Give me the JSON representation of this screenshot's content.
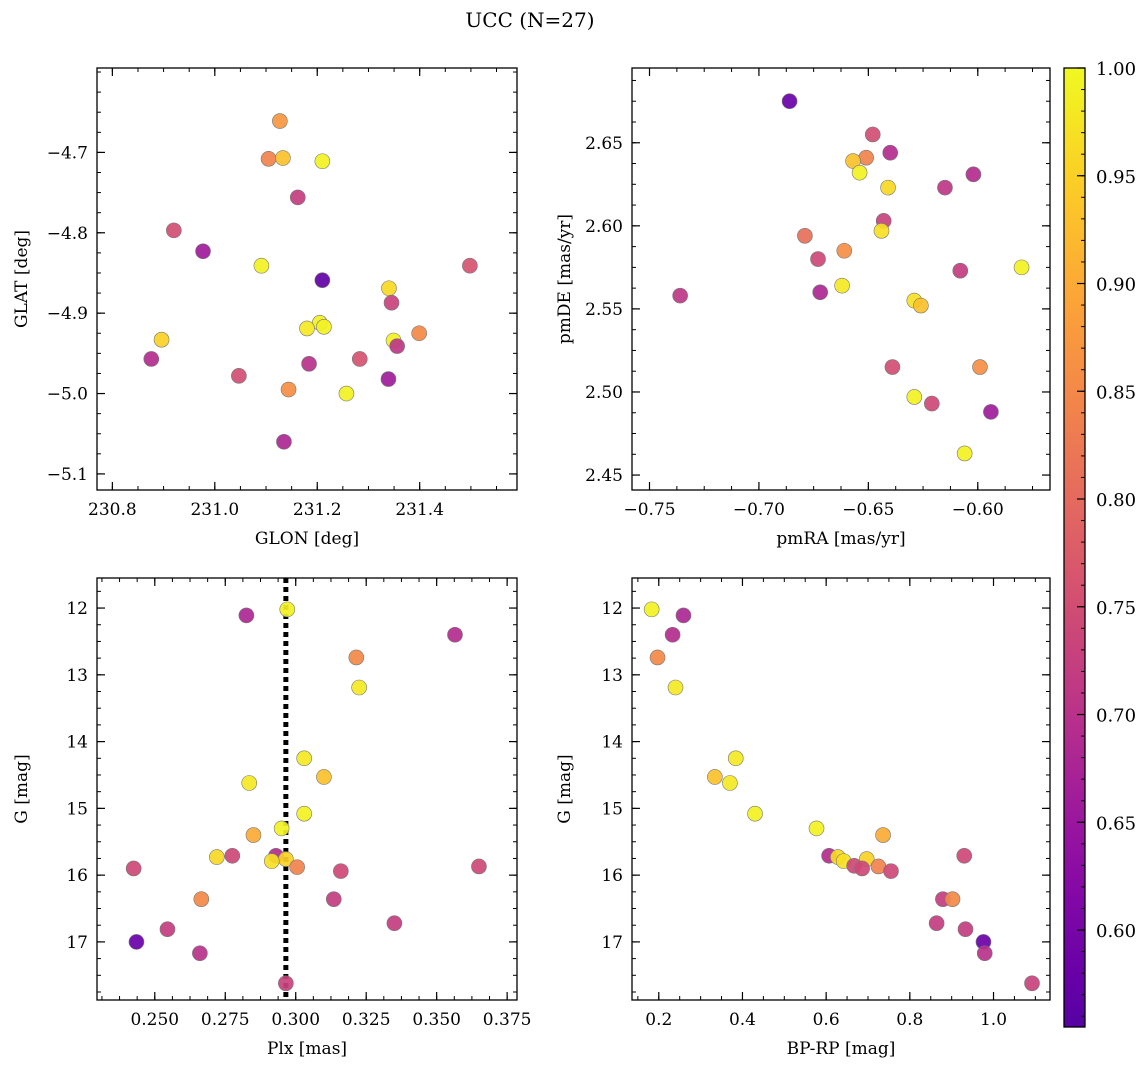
{
  "figure": {
    "title": "UCC (N=27)"
  },
  "colorbar": {
    "range": [
      0.555,
      1.0
    ],
    "ticks": [
      0.6,
      0.65,
      0.7,
      0.75,
      0.8,
      0.85,
      0.9,
      0.95,
      1.0
    ],
    "tick_labels": [
      "0.60",
      "0.65",
      "0.70",
      "0.75",
      "0.80",
      "0.85",
      "0.90",
      "0.95",
      "1.00"
    ],
    "colormap": "plasma"
  },
  "chart_data": [
    {
      "type": "scatter",
      "xlabel": "GLON [deg]",
      "ylabel": "GLAT [deg]",
      "xlim": [
        230.77,
        231.59
      ],
      "ylim": [
        -5.12,
        -4.595
      ],
      "xticks": [
        230.8,
        231.0,
        231.2,
        231.4
      ],
      "xtick_labels": [
        "230.8",
        "231.0",
        "231.2",
        "231.4"
      ],
      "yticks": [
        -4.7,
        -4.8,
        -4.9,
        -5.0,
        -5.1
      ],
      "ytick_labels": [
        "−4.7",
        "−4.8",
        "−4.9",
        "−5.0",
        "−5.1"
      ],
      "points": [
        {
          "x": 231.127,
          "y": -4.661,
          "c": 0.87
        },
        {
          "x": 231.105,
          "y": -4.708,
          "c": 0.84
        },
        {
          "x": 231.133,
          "y": -4.707,
          "c": 0.93
        },
        {
          "x": 231.21,
          "y": -4.711,
          "c": 0.99
        },
        {
          "x": 231.162,
          "y": -4.756,
          "c": 0.72
        },
        {
          "x": 230.92,
          "y": -4.797,
          "c": 0.75
        },
        {
          "x": 230.977,
          "y": -4.823,
          "c": 0.66
        },
        {
          "x": 231.091,
          "y": -4.841,
          "c": 0.99
        },
        {
          "x": 231.21,
          "y": -4.859,
          "c": 0.57
        },
        {
          "x": 231.498,
          "y": -4.841,
          "c": 0.76
        },
        {
          "x": 231.34,
          "y": -4.869,
          "c": 0.96
        },
        {
          "x": 231.345,
          "y": -4.887,
          "c": 0.73
        },
        {
          "x": 231.205,
          "y": -4.912,
          "c": 0.99
        },
        {
          "x": 231.18,
          "y": -4.919,
          "c": 0.98
        },
        {
          "x": 231.213,
          "y": -4.917,
          "c": 0.99
        },
        {
          "x": 230.896,
          "y": -4.933,
          "c": 0.95
        },
        {
          "x": 231.399,
          "y": -4.925,
          "c": 0.85
        },
        {
          "x": 231.349,
          "y": -4.934,
          "c": 0.99
        },
        {
          "x": 231.356,
          "y": -4.941,
          "c": 0.71
        },
        {
          "x": 230.876,
          "y": -4.957,
          "c": 0.69
        },
        {
          "x": 231.184,
          "y": -4.963,
          "c": 0.7
        },
        {
          "x": 231.283,
          "y": -4.957,
          "c": 0.76
        },
        {
          "x": 231.047,
          "y": -4.978,
          "c": 0.75
        },
        {
          "x": 231.339,
          "y": -4.982,
          "c": 0.66
        },
        {
          "x": 231.144,
          "y": -4.995,
          "c": 0.86
        },
        {
          "x": 231.257,
          "y": -5.0,
          "c": 0.99
        },
        {
          "x": 231.135,
          "y": -5.06,
          "c": 0.68
        }
      ]
    },
    {
      "type": "scatter",
      "xlabel": "pmRA [mas/yr]",
      "ylabel": "pmDE [mas/yr]",
      "xlim": [
        -0.758,
        -0.567
      ],
      "ylim": [
        2.441,
        2.695
      ],
      "xticks": [
        -0.75,
        -0.7,
        -0.65,
        -0.6
      ],
      "xtick_labels": [
        "−0.75",
        "−0.70",
        "−0.65",
        "−0.60"
      ],
      "yticks": [
        2.45,
        2.5,
        2.55,
        2.6,
        2.65
      ],
      "ytick_labels": [
        "2.45",
        "2.50",
        "2.55",
        "2.60",
        "2.65"
      ],
      "points": [
        {
          "x": -0.686,
          "y": 2.675,
          "c": 0.58
        },
        {
          "x": -0.648,
          "y": 2.655,
          "c": 0.75
        },
        {
          "x": -0.651,
          "y": 2.641,
          "c": 0.84
        },
        {
          "x": -0.657,
          "y": 2.639,
          "c": 0.93
        },
        {
          "x": -0.64,
          "y": 2.644,
          "c": 0.69
        },
        {
          "x": -0.654,
          "y": 2.632,
          "c": 0.99
        },
        {
          "x": -0.641,
          "y": 2.623,
          "c": 0.96
        },
        {
          "x": -0.615,
          "y": 2.623,
          "c": 0.71
        },
        {
          "x": -0.602,
          "y": 2.631,
          "c": 0.69
        },
        {
          "x": -0.643,
          "y": 2.603,
          "c": 0.73
        },
        {
          "x": -0.644,
          "y": 2.597,
          "c": 0.97
        },
        {
          "x": -0.679,
          "y": 2.594,
          "c": 0.81
        },
        {
          "x": -0.661,
          "y": 2.585,
          "c": 0.86
        },
        {
          "x": -0.673,
          "y": 2.58,
          "c": 0.74
        },
        {
          "x": -0.608,
          "y": 2.573,
          "c": 0.72
        },
        {
          "x": -0.58,
          "y": 2.575,
          "c": 0.99
        },
        {
          "x": -0.662,
          "y": 2.564,
          "c": 0.98
        },
        {
          "x": -0.672,
          "y": 2.56,
          "c": 0.68
        },
        {
          "x": -0.736,
          "y": 2.558,
          "c": 0.71
        },
        {
          "x": -0.629,
          "y": 2.555,
          "c": 0.97
        },
        {
          "x": -0.626,
          "y": 2.552,
          "c": 0.93
        },
        {
          "x": -0.639,
          "y": 2.515,
          "c": 0.75
        },
        {
          "x": -0.599,
          "y": 2.515,
          "c": 0.86
        },
        {
          "x": -0.629,
          "y": 2.497,
          "c": 0.99
        },
        {
          "x": -0.621,
          "y": 2.493,
          "c": 0.74
        },
        {
          "x": -0.594,
          "y": 2.488,
          "c": 0.66
        },
        {
          "x": -0.606,
          "y": 2.463,
          "c": 0.99
        }
      ]
    },
    {
      "type": "scatter",
      "xlabel": "Plx [mas]",
      "ylabel": "G [mag]",
      "xlim": [
        0.2295,
        0.3785
      ],
      "ylim": [
        17.87,
        11.55
      ],
      "y_inverted": true,
      "vline": 0.2965,
      "xticks": [
        0.25,
        0.275,
        0.3,
        0.325,
        0.35,
        0.375
      ],
      "xtick_labels": [
        "0.250",
        "0.275",
        "0.300",
        "0.325",
        "0.350",
        "0.375"
      ],
      "yticks": [
        12,
        13,
        14,
        15,
        16,
        17
      ],
      "ytick_labels": [
        "12",
        "13",
        "14",
        "15",
        "16",
        "17"
      ],
      "points": [
        {
          "x": 0.297,
          "y": 12.02,
          "c": 0.99
        },
        {
          "x": 0.2825,
          "y": 12.11,
          "c": 0.68
        },
        {
          "x": 0.3565,
          "y": 12.4,
          "c": 0.69
        },
        {
          "x": 0.3215,
          "y": 12.74,
          "c": 0.85
        },
        {
          "x": 0.3225,
          "y": 13.19,
          "c": 0.98
        },
        {
          "x": 0.303,
          "y": 14.25,
          "c": 0.98
        },
        {
          "x": 0.31,
          "y": 14.53,
          "c": 0.93
        },
        {
          "x": 0.2835,
          "y": 14.62,
          "c": 0.98
        },
        {
          "x": 0.303,
          "y": 15.08,
          "c": 0.99
        },
        {
          "x": 0.295,
          "y": 15.3,
          "c": 0.99
        },
        {
          "x": 0.285,
          "y": 15.4,
          "c": 0.9
        },
        {
          "x": 0.2775,
          "y": 15.71,
          "c": 0.74
        },
        {
          "x": 0.272,
          "y": 15.73,
          "c": 0.96
        },
        {
          "x": 0.293,
          "y": 15.71,
          "c": 0.69
        },
        {
          "x": 0.2965,
          "y": 15.76,
          "c": 0.95
        },
        {
          "x": 0.2915,
          "y": 15.79,
          "c": 0.97
        },
        {
          "x": 0.3005,
          "y": 15.88,
          "c": 0.84
        },
        {
          "x": 0.2425,
          "y": 15.9,
          "c": 0.74
        },
        {
          "x": 0.316,
          "y": 15.94,
          "c": 0.74
        },
        {
          "x": 0.365,
          "y": 15.87,
          "c": 0.74
        },
        {
          "x": 0.2665,
          "y": 16.36,
          "c": 0.85
        },
        {
          "x": 0.3135,
          "y": 16.36,
          "c": 0.72
        },
        {
          "x": 0.335,
          "y": 16.72,
          "c": 0.72
        },
        {
          "x": 0.2545,
          "y": 16.81,
          "c": 0.72
        },
        {
          "x": 0.2435,
          "y": 17.0,
          "c": 0.58
        },
        {
          "x": 0.266,
          "y": 17.17,
          "c": 0.7
        },
        {
          "x": 0.2965,
          "y": 17.62,
          "c": 0.73
        }
      ]
    },
    {
      "type": "scatter",
      "xlabel": "BP-RP [mag]",
      "ylabel": "G [mag]",
      "xlim": [
        0.136,
        1.135
      ],
      "ylim": [
        17.87,
        11.55
      ],
      "y_inverted": true,
      "xticks": [
        0.2,
        0.4,
        0.6,
        0.8,
        1.0
      ],
      "xtick_labels": [
        "0.2",
        "0.4",
        "0.6",
        "0.8",
        "1.0"
      ],
      "yticks": [
        12,
        13,
        14,
        15,
        16,
        17
      ],
      "ytick_labels": [
        "12",
        "13",
        "14",
        "15",
        "16",
        "17"
      ],
      "points": [
        {
          "x": 0.183,
          "y": 12.02,
          "c": 0.99
        },
        {
          "x": 0.259,
          "y": 12.11,
          "c": 0.68
        },
        {
          "x": 0.233,
          "y": 12.4,
          "c": 0.69
        },
        {
          "x": 0.197,
          "y": 12.74,
          "c": 0.85
        },
        {
          "x": 0.24,
          "y": 13.19,
          "c": 0.98
        },
        {
          "x": 0.384,
          "y": 14.25,
          "c": 0.98
        },
        {
          "x": 0.334,
          "y": 14.53,
          "c": 0.93
        },
        {
          "x": 0.37,
          "y": 14.62,
          "c": 0.98
        },
        {
          "x": 0.43,
          "y": 15.08,
          "c": 0.99
        },
        {
          "x": 0.577,
          "y": 15.3,
          "c": 0.99
        },
        {
          "x": 0.736,
          "y": 15.4,
          "c": 0.9
        },
        {
          "x": 0.607,
          "y": 15.71,
          "c": 0.69
        },
        {
          "x": 0.93,
          "y": 15.71,
          "c": 0.74
        },
        {
          "x": 0.628,
          "y": 15.73,
          "c": 0.96
        },
        {
          "x": 0.697,
          "y": 15.76,
          "c": 0.95
        },
        {
          "x": 0.642,
          "y": 15.79,
          "c": 0.97
        },
        {
          "x": 0.667,
          "y": 15.86,
          "c": 0.74
        },
        {
          "x": 0.686,
          "y": 15.9,
          "c": 0.74
        },
        {
          "x": 0.725,
          "y": 15.87,
          "c": 0.84
        },
        {
          "x": 0.755,
          "y": 15.94,
          "c": 0.74
        },
        {
          "x": 0.879,
          "y": 16.36,
          "c": 0.72
        },
        {
          "x": 0.902,
          "y": 16.36,
          "c": 0.85
        },
        {
          "x": 0.864,
          "y": 16.72,
          "c": 0.72
        },
        {
          "x": 0.933,
          "y": 16.81,
          "c": 0.72
        },
        {
          "x": 0.976,
          "y": 17.0,
          "c": 0.58
        },
        {
          "x": 0.979,
          "y": 17.17,
          "c": 0.7
        },
        {
          "x": 1.092,
          "y": 17.62,
          "c": 0.73
        }
      ]
    }
  ]
}
